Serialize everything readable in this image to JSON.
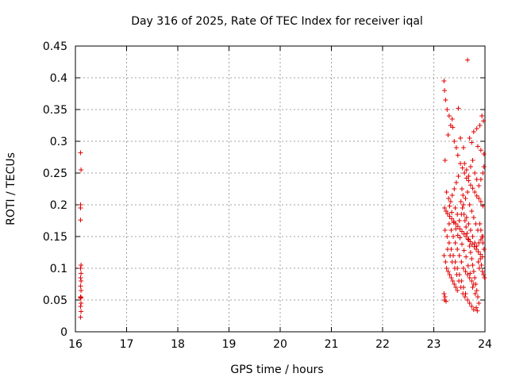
{
  "chart_data": {
    "type": "scatter",
    "title": "Day 316 of 2025, Rate Of TEC Index for receiver iqal",
    "xlabel": "GPS time / hours",
    "ylabel": "ROTI / TECUs",
    "xlim": [
      16,
      24
    ],
    "ylim": [
      0,
      0.45
    ],
    "xticks": [
      16,
      17,
      18,
      19,
      20,
      21,
      22,
      23,
      24
    ],
    "xtick_labels": [
      "16",
      "17",
      "18",
      "19",
      "20",
      "21",
      "22",
      "23",
      "24"
    ],
    "yticks": [
      0,
      0.05,
      0.1,
      0.15,
      0.2,
      0.25,
      0.3,
      0.35,
      0.4,
      0.45
    ],
    "ytick_labels": [
      "0",
      "0.05",
      "0.1",
      "0.15",
      "0.2",
      "0.25",
      "0.3",
      "0.35",
      "0.4",
      "0.45"
    ],
    "grid": true,
    "marker": "+",
    "marker_color": "#e00000",
    "points": [
      [
        16.1,
        0.282
      ],
      [
        16.11,
        0.255
      ],
      [
        16.1,
        0.2
      ],
      [
        16.1,
        0.195
      ],
      [
        16.1,
        0.176
      ],
      [
        16.11,
        0.105
      ],
      [
        16.1,
        0.1
      ],
      [
        16.11,
        0.092
      ],
      [
        16.1,
        0.085
      ],
      [
        16.11,
        0.08
      ],
      [
        16.1,
        0.072
      ],
      [
        16.11,
        0.065
      ],
      [
        16.1,
        0.055
      ],
      [
        16.11,
        0.054
      ],
      [
        16.1,
        0.053
      ],
      [
        16.11,
        0.045
      ],
      [
        16.1,
        0.04
      ],
      [
        16.11,
        0.032
      ],
      [
        16.1,
        0.023
      ],
      [
        23.2,
        0.395
      ],
      [
        23.21,
        0.38
      ],
      [
        23.23,
        0.365
      ],
      [
        23.26,
        0.35
      ],
      [
        23.3,
        0.34
      ],
      [
        23.33,
        0.325
      ],
      [
        23.37,
        0.322
      ],
      [
        23.4,
        0.3
      ],
      [
        23.44,
        0.29
      ],
      [
        23.47,
        0.278
      ],
      [
        23.22,
        0.27
      ],
      [
        23.52,
        0.265
      ],
      [
        23.56,
        0.258
      ],
      [
        23.6,
        0.25
      ],
      [
        23.64,
        0.242
      ],
      [
        23.68,
        0.238
      ],
      [
        23.72,
        0.231
      ],
      [
        23.76,
        0.226
      ],
      [
        23.8,
        0.22
      ],
      [
        23.84,
        0.214
      ],
      [
        23.88,
        0.21
      ],
      [
        23.92,
        0.205
      ],
      [
        23.96,
        0.198
      ],
      [
        23.66,
        0.428
      ],
      [
        23.94,
        0.34
      ],
      [
        23.97,
        0.332
      ],
      [
        23.9,
        0.325
      ],
      [
        23.84,
        0.32
      ],
      [
        23.78,
        0.315
      ],
      [
        23.7,
        0.305
      ],
      [
        23.74,
        0.298
      ],
      [
        23.86,
        0.292
      ],
      [
        23.92,
        0.286
      ],
      [
        23.98,
        0.28
      ],
      [
        23.48,
        0.352
      ],
      [
        23.36,
        0.335
      ],
      [
        23.28,
        0.31
      ],
      [
        23.52,
        0.305
      ],
      [
        23.58,
        0.29
      ],
      [
        23.21,
        0.195
      ],
      [
        23.24,
        0.19
      ],
      [
        23.27,
        0.186
      ],
      [
        23.31,
        0.182
      ],
      [
        23.35,
        0.178
      ],
      [
        23.39,
        0.174
      ],
      [
        23.43,
        0.17
      ],
      [
        23.47,
        0.166
      ],
      [
        23.51,
        0.162
      ],
      [
        23.55,
        0.158
      ],
      [
        23.59,
        0.154
      ],
      [
        23.63,
        0.15
      ],
      [
        23.67,
        0.146
      ],
      [
        23.71,
        0.142
      ],
      [
        23.75,
        0.138
      ],
      [
        23.79,
        0.134
      ],
      [
        23.83,
        0.13
      ],
      [
        23.87,
        0.126
      ],
      [
        23.91,
        0.122
      ],
      [
        23.95,
        0.118
      ],
      [
        23.22,
        0.16
      ],
      [
        23.26,
        0.15
      ],
      [
        23.3,
        0.14
      ],
      [
        23.34,
        0.13
      ],
      [
        23.38,
        0.12
      ],
      [
        23.42,
        0.11
      ],
      [
        23.46,
        0.1
      ],
      [
        23.5,
        0.09
      ],
      [
        23.54,
        0.08
      ],
      [
        23.58,
        0.07
      ],
      [
        23.62,
        0.06
      ],
      [
        23.66,
        0.05
      ],
      [
        23.7,
        0.045
      ],
      [
        23.74,
        0.04
      ],
      [
        23.78,
        0.035
      ],
      [
        23.2,
        0.12
      ],
      [
        23.23,
        0.11
      ],
      [
        23.25,
        0.1
      ],
      [
        23.28,
        0.095
      ],
      [
        23.31,
        0.09
      ],
      [
        23.34,
        0.085
      ],
      [
        23.37,
        0.08
      ],
      [
        23.4,
        0.075
      ],
      [
        23.43,
        0.07
      ],
      [
        23.46,
        0.065
      ],
      [
        23.2,
        0.06
      ],
      [
        23.22,
        0.055
      ],
      [
        23.21,
        0.05
      ],
      [
        23.24,
        0.048
      ],
      [
        23.55,
        0.225
      ],
      [
        23.57,
        0.215
      ],
      [
        23.53,
        0.205
      ],
      [
        23.56,
        0.195
      ],
      [
        23.59,
        0.185
      ],
      [
        23.61,
        0.175
      ],
      [
        23.63,
        0.165
      ],
      [
        23.65,
        0.155
      ],
      [
        23.68,
        0.145
      ],
      [
        23.7,
        0.135
      ],
      [
        23.72,
        0.125
      ],
      [
        23.74,
        0.115
      ],
      [
        23.76,
        0.105
      ],
      [
        23.78,
        0.095
      ],
      [
        23.8,
        0.085
      ],
      [
        23.82,
        0.075
      ],
      [
        23.84,
        0.065
      ],
      [
        23.86,
        0.055
      ],
      [
        23.88,
        0.045
      ],
      [
        23.9,
        0.17
      ],
      [
        23.92,
        0.16
      ],
      [
        23.94,
        0.15
      ],
      [
        23.96,
        0.14
      ],
      [
        23.98,
        0.13
      ],
      [
        23.91,
        0.115
      ],
      [
        23.93,
        0.105
      ],
      [
        23.95,
        0.095
      ],
      [
        23.97,
        0.09
      ],
      [
        23.99,
        0.085
      ],
      [
        23.89,
        0.1
      ],
      [
        23.87,
        0.11
      ],
      [
        23.36,
        0.215
      ],
      [
        23.4,
        0.225
      ],
      [
        23.44,
        0.235
      ],
      [
        23.48,
        0.245
      ],
      [
        23.33,
        0.205
      ],
      [
        23.29,
        0.21
      ],
      [
        23.25,
        0.22
      ],
      [
        23.42,
        0.195
      ],
      [
        23.46,
        0.185
      ],
      [
        23.5,
        0.175
      ],
      [
        23.54,
        0.185
      ],
      [
        23.58,
        0.2
      ],
      [
        23.62,
        0.21
      ],
      [
        23.66,
        0.22
      ],
      [
        23.7,
        0.2
      ],
      [
        23.74,
        0.19
      ],
      [
        23.78,
        0.18
      ],
      [
        23.82,
        0.17
      ],
      [
        23.86,
        0.16
      ],
      [
        23.3,
        0.17
      ],
      [
        23.34,
        0.16
      ],
      [
        23.38,
        0.15
      ],
      [
        23.42,
        0.14
      ],
      [
        23.46,
        0.13
      ],
      [
        23.5,
        0.12
      ],
      [
        23.54,
        0.11
      ],
      [
        23.58,
        0.1
      ],
      [
        23.62,
        0.095
      ],
      [
        23.66,
        0.09
      ],
      [
        23.7,
        0.085
      ],
      [
        23.74,
        0.08
      ],
      [
        23.78,
        0.075
      ],
      [
        23.27,
        0.13
      ],
      [
        23.32,
        0.12
      ],
      [
        23.36,
        0.11
      ],
      [
        23.41,
        0.1
      ],
      [
        23.45,
        0.09
      ],
      [
        23.49,
        0.08
      ],
      [
        23.53,
        0.07
      ],
      [
        23.57,
        0.06
      ],
      [
        23.61,
        0.055
      ],
      [
        23.64,
        0.18
      ],
      [
        23.68,
        0.17
      ],
      [
        23.72,
        0.16
      ],
      [
        23.76,
        0.15
      ],
      [
        23.8,
        0.14
      ],
      [
        23.84,
        0.135
      ],
      [
        23.88,
        0.14
      ],
      [
        23.92,
        0.145
      ],
      [
        23.96,
        0.15
      ],
      [
        23.6,
        0.265
      ],
      [
        23.64,
        0.255
      ],
      [
        23.68,
        0.245
      ],
      [
        23.72,
        0.26
      ],
      [
        23.76,
        0.27
      ],
      [
        23.8,
        0.25
      ],
      [
        23.84,
        0.24
      ],
      [
        23.88,
        0.23
      ],
      [
        23.92,
        0.24
      ],
      [
        23.96,
        0.25
      ],
      [
        23.98,
        0.26
      ],
      [
        23.83,
        0.038
      ],
      [
        23.85,
        0.033
      ],
      [
        23.81,
        0.06
      ],
      [
        23.76,
        0.07
      ],
      [
        23.71,
        0.092
      ],
      [
        23.67,
        0.104
      ],
      [
        23.63,
        0.118
      ],
      [
        23.59,
        0.128
      ],
      [
        23.55,
        0.138
      ],
      [
        23.51,
        0.148
      ],
      [
        23.47,
        0.152
      ],
      [
        23.43,
        0.162
      ],
      [
        23.39,
        0.172
      ],
      [
        23.35,
        0.188
      ],
      [
        23.31,
        0.198
      ]
    ]
  }
}
